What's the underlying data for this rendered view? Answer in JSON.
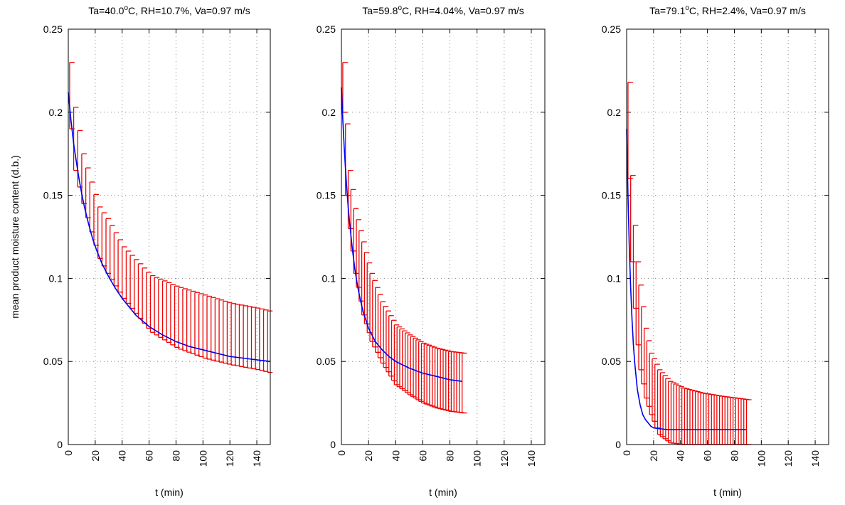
{
  "figure": {
    "ylabel": "mean product moisture content (d.b.)"
  },
  "colors": {
    "fit": "#0000ee",
    "errorbar": "#ee0000",
    "grid": "#888888",
    "axis": "#000000"
  },
  "chart_data": [
    {
      "type": "line",
      "title": "Ta=40.0⁰C, RH=10.7%, Va=0.97 m/s",
      "title_parts": {
        "before": "Ta=40.0",
        "sup": "o",
        "after": "C, RH=10.7%, Va=0.97 m/s"
      },
      "xlabel": "t (min)",
      "ylabel": "mean product moisture content (d.b.)",
      "xlim": [
        0,
        150
      ],
      "ylim": [
        0,
        0.25
      ],
      "xticks": [
        "0",
        "20",
        "40",
        "60",
        "80",
        "100",
        "120",
        "140"
      ],
      "yticks": [
        "0",
        "0.05",
        "0.1",
        "0.15",
        "0.2",
        "0.25"
      ],
      "grid": true,
      "series": [
        {
          "kind": "fit",
          "x": [
            0,
            2,
            4,
            6,
            8,
            10,
            12,
            15,
            18,
            21,
            25,
            30,
            35,
            40,
            45,
            50,
            60,
            70,
            80,
            90,
            100,
            110,
            120,
            130,
            140,
            150
          ],
          "y": [
            0.212,
            0.195,
            0.181,
            0.17,
            0.16,
            0.151,
            0.143,
            0.133,
            0.124,
            0.117,
            0.109,
            0.101,
            0.094,
            0.088,
            0.083,
            0.078,
            0.071,
            0.066,
            0.062,
            0.059,
            0.057,
            0.055,
            0.053,
            0.052,
            0.051,
            0.05
          ]
        },
        {
          "kind": "errorbar",
          "x_start": 1,
          "x_step": 3,
          "x_end": 150,
          "keys": [
            {
              "t": 1,
              "lo": 0.19,
              "hi": 0.23
            },
            {
              "t": 4,
              "lo": 0.165,
              "hi": 0.203
            },
            {
              "t": 10,
              "lo": 0.145,
              "hi": 0.175
            },
            {
              "t": 16,
              "lo": 0.128,
              "hi": 0.158
            },
            {
              "t": 22,
              "lo": 0.112,
              "hi": 0.143
            },
            {
              "t": 28,
              "lo": 0.103,
              "hi": 0.136
            },
            {
              "t": 40,
              "lo": 0.088,
              "hi": 0.119
            },
            {
              "t": 60,
              "lo": 0.068,
              "hi": 0.102
            },
            {
              "t": 80,
              "lo": 0.058,
              "hi": 0.095
            },
            {
              "t": 100,
              "lo": 0.052,
              "hi": 0.09
            },
            {
              "t": 120,
              "lo": 0.048,
              "hi": 0.085
            },
            {
              "t": 140,
              "lo": 0.045,
              "hi": 0.082
            },
            {
              "t": 150,
              "lo": 0.043,
              "hi": 0.08
            }
          ]
        }
      ]
    },
    {
      "type": "line",
      "title": "Ta=59.8⁰C, RH=4.04%, Va=0.97 m/s",
      "title_parts": {
        "before": "Ta=59.8",
        "sup": "o",
        "after": "C, RH=4.04%, Va=0.97 m/s"
      },
      "xlabel": "t (min)",
      "ylabel": "",
      "xlim": [
        0,
        150
      ],
      "ylim": [
        0,
        0.25
      ],
      "xticks": [
        "0",
        "20",
        "40",
        "60",
        "80",
        "100",
        "120",
        "140"
      ],
      "yticks": [
        "0",
        "0.05",
        "0.1",
        "0.15",
        "0.2",
        "0.25"
      ],
      "grid": true,
      "series": [
        {
          "kind": "fit",
          "x": [
            0,
            1,
            2,
            3,
            4,
            5,
            6,
            8,
            10,
            12,
            14,
            16,
            18,
            20,
            25,
            30,
            35,
            40,
            50,
            60,
            70,
            80,
            89
          ],
          "y": [
            0.215,
            0.196,
            0.18,
            0.166,
            0.154,
            0.143,
            0.134,
            0.118,
            0.105,
            0.095,
            0.087,
            0.08,
            0.075,
            0.07,
            0.062,
            0.057,
            0.053,
            0.05,
            0.046,
            0.043,
            0.041,
            0.039,
            0.038
          ]
        },
        {
          "kind": "errorbar",
          "x_start": 1,
          "x_step": 2,
          "x_end": 89,
          "keys": [
            {
              "t": 1,
              "lo": 0.2,
              "hi": 0.23
            },
            {
              "t": 3,
              "lo": 0.15,
              "hi": 0.193
            },
            {
              "t": 5,
              "lo": 0.13,
              "hi": 0.165
            },
            {
              "t": 9,
              "lo": 0.103,
              "hi": 0.142
            },
            {
              "t": 15,
              "lo": 0.078,
              "hi": 0.122
            },
            {
              "t": 21,
              "lo": 0.062,
              "hi": 0.103
            },
            {
              "t": 29,
              "lo": 0.049,
              "hi": 0.086
            },
            {
              "t": 39,
              "lo": 0.036,
              "hi": 0.072
            },
            {
              "t": 49,
              "lo": 0.03,
              "hi": 0.066
            },
            {
              "t": 59,
              "lo": 0.025,
              "hi": 0.061
            },
            {
              "t": 69,
              "lo": 0.022,
              "hi": 0.058
            },
            {
              "t": 79,
              "lo": 0.02,
              "hi": 0.056
            },
            {
              "t": 89,
              "lo": 0.019,
              "hi": 0.055
            }
          ]
        }
      ]
    },
    {
      "type": "line",
      "title": "Ta=79.1⁰C, RH=2.4%, Va=0.97 m/s",
      "title_parts": {
        "before": "Ta=79.1",
        "sup": "o",
        "after": "C, RH=2.4%, Va=0.97 m/s"
      },
      "xlabel": "t (min)",
      "ylabel": "",
      "xlim": [
        0,
        150
      ],
      "ylim": [
        0,
        0.25
      ],
      "xticks": [
        "0",
        "20",
        "40",
        "60",
        "80",
        "100",
        "120",
        "140"
      ],
      "yticks": [
        "0",
        "0.05",
        "0.1",
        "0.15",
        "0.2",
        "0.25"
      ],
      "grid": true,
      "series": [
        {
          "kind": "fit",
          "x": [
            0,
            1,
            2,
            3,
            4,
            5,
            6,
            8,
            10,
            12,
            14,
            16,
            18,
            20,
            25,
            30,
            35,
            40,
            50,
            60,
            70,
            80,
            89
          ],
          "y": [
            0.19,
            0.15,
            0.118,
            0.094,
            0.075,
            0.06,
            0.049,
            0.033,
            0.024,
            0.018,
            0.015,
            0.013,
            0.011,
            0.01,
            0.0095,
            0.009,
            0.009,
            0.009,
            0.009,
            0.009,
            0.009,
            0.009,
            0.009
          ]
        },
        {
          "kind": "errorbar",
          "x_start": 1,
          "x_step": 2,
          "x_end": 89,
          "keys": [
            {
              "t": 1,
              "lo": 0.16,
              "hi": 0.218
            },
            {
              "t": 3,
              "lo": 0.11,
              "hi": 0.162
            },
            {
              "t": 5,
              "lo": 0.082,
              "hi": 0.132
            },
            {
              "t": 7,
              "lo": 0.06,
              "hi": 0.11
            },
            {
              "t": 9,
              "lo": 0.045,
              "hi": 0.096
            },
            {
              "t": 13,
              "lo": 0.028,
              "hi": 0.07
            },
            {
              "t": 17,
              "lo": 0.018,
              "hi": 0.055
            },
            {
              "t": 23,
              "lo": 0.006,
              "hi": 0.045
            },
            {
              "t": 31,
              "lo": 0.001,
              "hi": 0.038
            },
            {
              "t": 41,
              "lo": 0.0,
              "hi": 0.034
            },
            {
              "t": 55,
              "lo": 0.0,
              "hi": 0.031
            },
            {
              "t": 70,
              "lo": 0.0,
              "hi": 0.029
            },
            {
              "t": 89,
              "lo": 0.0,
              "hi": 0.027
            }
          ]
        }
      ]
    }
  ]
}
